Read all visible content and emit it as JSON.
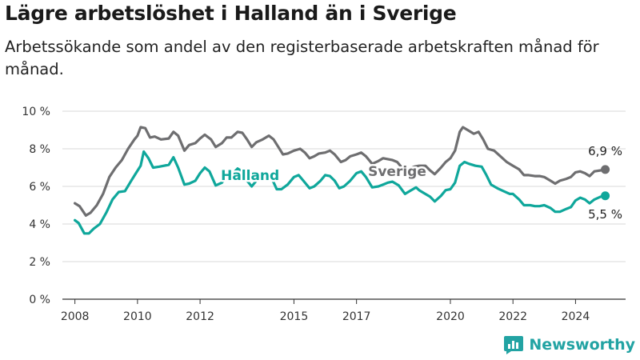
{
  "title": "Lägre arbetslöshet i Halland än i Sverige",
  "subtitle": "Arbetssökande som andel av den registerbaserade arbetskraften månad för månad.",
  "brand": {
    "name": "Newsworthy",
    "icon": "newsworthy-logo-icon"
  },
  "colors": {
    "sverige": "#6e6e70",
    "halland": "#0fa79b",
    "grid": "#d9d9d9",
    "axis": "#333333"
  },
  "chart_data": {
    "type": "line",
    "title": "Lägre arbetslöshet i Halland än i Sverige",
    "ylim": [
      0,
      10
    ],
    "y_ticks": [
      "0 %",
      "2 %",
      "4 %",
      "6 %",
      "8 %",
      "10 %"
    ],
    "y_tick_values": [
      0,
      2,
      4,
      6,
      8,
      10
    ],
    "x_ticks": [
      "2008",
      "2010",
      "2012",
      "2015",
      "2017",
      "2020",
      "2022",
      "2024"
    ],
    "x_tick_values": [
      2008,
      2010,
      2012,
      2015,
      2017,
      2020,
      2022,
      2024
    ],
    "xlim": [
      2007.6,
      2025.6
    ],
    "grid": "horizontal",
    "series": [
      {
        "name": "Sverige",
        "end_label": "6,9 %",
        "points": [
          [
            2008.0,
            5.1
          ],
          [
            2008.15,
            4.95
          ],
          [
            2008.35,
            4.45
          ],
          [
            2008.5,
            4.6
          ],
          [
            2008.7,
            5.0
          ],
          [
            2008.9,
            5.6
          ],
          [
            2009.1,
            6.5
          ],
          [
            2009.3,
            7.0
          ],
          [
            2009.5,
            7.4
          ],
          [
            2009.7,
            8.0
          ],
          [
            2009.9,
            8.5
          ],
          [
            2010.0,
            8.7
          ],
          [
            2010.1,
            9.15
          ],
          [
            2010.25,
            9.1
          ],
          [
            2010.4,
            8.6
          ],
          [
            2010.55,
            8.65
          ],
          [
            2010.75,
            8.5
          ],
          [
            2011.0,
            8.55
          ],
          [
            2011.15,
            8.9
          ],
          [
            2011.3,
            8.7
          ],
          [
            2011.5,
            7.9
          ],
          [
            2011.65,
            8.2
          ],
          [
            2011.85,
            8.3
          ],
          [
            2012.0,
            8.55
          ],
          [
            2012.15,
            8.75
          ],
          [
            2012.35,
            8.5
          ],
          [
            2012.5,
            8.1
          ],
          [
            2012.7,
            8.3
          ],
          [
            2012.85,
            8.6
          ],
          [
            2013.0,
            8.6
          ],
          [
            2013.2,
            8.9
          ],
          [
            2013.35,
            8.85
          ],
          [
            2013.5,
            8.5
          ],
          [
            2013.65,
            8.1
          ],
          [
            2013.8,
            8.35
          ],
          [
            2014.0,
            8.5
          ],
          [
            2014.2,
            8.7
          ],
          [
            2014.35,
            8.5
          ],
          [
            2014.5,
            8.1
          ],
          [
            2014.65,
            7.7
          ],
          [
            2014.8,
            7.75
          ],
          [
            2015.0,
            7.9
          ],
          [
            2015.2,
            8.0
          ],
          [
            2015.35,
            7.8
          ],
          [
            2015.5,
            7.5
          ],
          [
            2015.65,
            7.6
          ],
          [
            2015.8,
            7.75
          ],
          [
            2016.0,
            7.8
          ],
          [
            2016.15,
            7.9
          ],
          [
            2016.3,
            7.7
          ],
          [
            2016.5,
            7.3
          ],
          [
            2016.65,
            7.4
          ],
          [
            2016.8,
            7.6
          ],
          [
            2017.0,
            7.7
          ],
          [
            2017.15,
            7.8
          ],
          [
            2017.3,
            7.6
          ],
          [
            2017.5,
            7.2
          ],
          [
            2017.7,
            7.35
          ],
          [
            2017.85,
            7.5
          ],
          [
            2018.0,
            7.45
          ],
          [
            2018.15,
            7.4
          ],
          [
            2018.3,
            7.3
          ],
          [
            2018.5,
            6.9
          ],
          [
            2018.7,
            6.95
          ],
          [
            2018.85,
            7.05
          ],
          [
            2019.0,
            7.1
          ],
          [
            2019.2,
            7.1
          ],
          [
            2019.35,
            6.85
          ],
          [
            2019.5,
            6.65
          ],
          [
            2019.7,
            7.0
          ],
          [
            2019.85,
            7.3
          ],
          [
            2020.0,
            7.5
          ],
          [
            2020.15,
            7.9
          ],
          [
            2020.3,
            8.9
          ],
          [
            2020.4,
            9.15
          ],
          [
            2020.55,
            9.0
          ],
          [
            2020.75,
            8.8
          ],
          [
            2020.9,
            8.9
          ],
          [
            2021.05,
            8.5
          ],
          [
            2021.2,
            8.0
          ],
          [
            2021.4,
            7.9
          ],
          [
            2021.6,
            7.6
          ],
          [
            2021.8,
            7.3
          ],
          [
            2022.0,
            7.1
          ],
          [
            2022.2,
            6.9
          ],
          [
            2022.35,
            6.6
          ],
          [
            2022.5,
            6.6
          ],
          [
            2022.7,
            6.55
          ],
          [
            2022.85,
            6.55
          ],
          [
            2023.0,
            6.5
          ],
          [
            2023.2,
            6.3
          ],
          [
            2023.35,
            6.15
          ],
          [
            2023.5,
            6.3
          ],
          [
            2023.7,
            6.4
          ],
          [
            2023.85,
            6.5
          ],
          [
            2024.0,
            6.75
          ],
          [
            2024.15,
            6.8
          ],
          [
            2024.3,
            6.7
          ],
          [
            2024.45,
            6.55
          ],
          [
            2024.6,
            6.8
          ],
          [
            2024.8,
            6.85
          ],
          [
            2024.95,
            6.9
          ]
        ]
      },
      {
        "name": "Halland",
        "end_label": "5,5 %",
        "points": [
          [
            2008.0,
            4.2
          ],
          [
            2008.12,
            4.05
          ],
          [
            2008.3,
            3.5
          ],
          [
            2008.45,
            3.5
          ],
          [
            2008.6,
            3.75
          ],
          [
            2008.8,
            4.0
          ],
          [
            2009.0,
            4.6
          ],
          [
            2009.2,
            5.3
          ],
          [
            2009.4,
            5.7
          ],
          [
            2009.6,
            5.75
          ],
          [
            2009.8,
            6.3
          ],
          [
            2009.95,
            6.7
          ],
          [
            2010.1,
            7.1
          ],
          [
            2010.2,
            7.85
          ],
          [
            2010.35,
            7.5
          ],
          [
            2010.5,
            7.0
          ],
          [
            2010.7,
            7.05
          ],
          [
            2011.0,
            7.15
          ],
          [
            2011.15,
            7.55
          ],
          [
            2011.3,
            7.0
          ],
          [
            2011.5,
            6.1
          ],
          [
            2011.65,
            6.15
          ],
          [
            2011.85,
            6.3
          ],
          [
            2012.0,
            6.7
          ],
          [
            2012.15,
            7.0
          ],
          [
            2012.3,
            6.8
          ],
          [
            2012.5,
            6.05
          ],
          [
            2012.7,
            6.2
          ],
          [
            2012.85,
            6.6
          ],
          [
            2013.0,
            6.6
          ],
          [
            2013.2,
            6.95
          ],
          [
            2013.35,
            6.8
          ],
          [
            2013.5,
            6.3
          ],
          [
            2013.65,
            6.0
          ],
          [
            2013.8,
            6.3
          ],
          [
            2014.0,
            6.55
          ],
          [
            2014.15,
            6.7
          ],
          [
            2014.3,
            6.4
          ],
          [
            2014.45,
            5.85
          ],
          [
            2014.6,
            5.85
          ],
          [
            2014.8,
            6.1
          ],
          [
            2015.0,
            6.5
          ],
          [
            2015.15,
            6.6
          ],
          [
            2015.3,
            6.3
          ],
          [
            2015.5,
            5.9
          ],
          [
            2015.65,
            6.0
          ],
          [
            2015.85,
            6.3
          ],
          [
            2016.0,
            6.6
          ],
          [
            2016.15,
            6.55
          ],
          [
            2016.3,
            6.3
          ],
          [
            2016.45,
            5.9
          ],
          [
            2016.6,
            6.0
          ],
          [
            2016.8,
            6.3
          ],
          [
            2017.0,
            6.7
          ],
          [
            2017.15,
            6.8
          ],
          [
            2017.3,
            6.5
          ],
          [
            2017.5,
            5.95
          ],
          [
            2017.7,
            6.0
          ],
          [
            2017.85,
            6.1
          ],
          [
            2018.0,
            6.2
          ],
          [
            2018.15,
            6.25
          ],
          [
            2018.35,
            6.05
          ],
          [
            2018.55,
            5.6
          ],
          [
            2018.7,
            5.75
          ],
          [
            2018.9,
            5.95
          ],
          [
            2019.0,
            5.8
          ],
          [
            2019.15,
            5.65
          ],
          [
            2019.35,
            5.45
          ],
          [
            2019.5,
            5.2
          ],
          [
            2019.7,
            5.5
          ],
          [
            2019.85,
            5.8
          ],
          [
            2020.0,
            5.85
          ],
          [
            2020.15,
            6.2
          ],
          [
            2020.3,
            7.1
          ],
          [
            2020.45,
            7.3
          ],
          [
            2020.6,
            7.2
          ],
          [
            2020.8,
            7.1
          ],
          [
            2021.0,
            7.05
          ],
          [
            2021.15,
            6.6
          ],
          [
            2021.3,
            6.1
          ],
          [
            2021.5,
            5.9
          ],
          [
            2021.7,
            5.75
          ],
          [
            2021.9,
            5.6
          ],
          [
            2022.0,
            5.6
          ],
          [
            2022.2,
            5.3
          ],
          [
            2022.35,
            5.0
          ],
          [
            2022.55,
            5.0
          ],
          [
            2022.7,
            4.95
          ],
          [
            2022.85,
            4.95
          ],
          [
            2023.0,
            5.0
          ],
          [
            2023.2,
            4.85
          ],
          [
            2023.35,
            4.65
          ],
          [
            2023.5,
            4.65
          ],
          [
            2023.7,
            4.8
          ],
          [
            2023.85,
            4.9
          ],
          [
            2024.0,
            5.25
          ],
          [
            2024.15,
            5.4
          ],
          [
            2024.3,
            5.3
          ],
          [
            2024.45,
            5.1
          ],
          [
            2024.6,
            5.3
          ],
          [
            2024.8,
            5.45
          ],
          [
            2024.95,
            5.5
          ]
        ]
      }
    ]
  }
}
